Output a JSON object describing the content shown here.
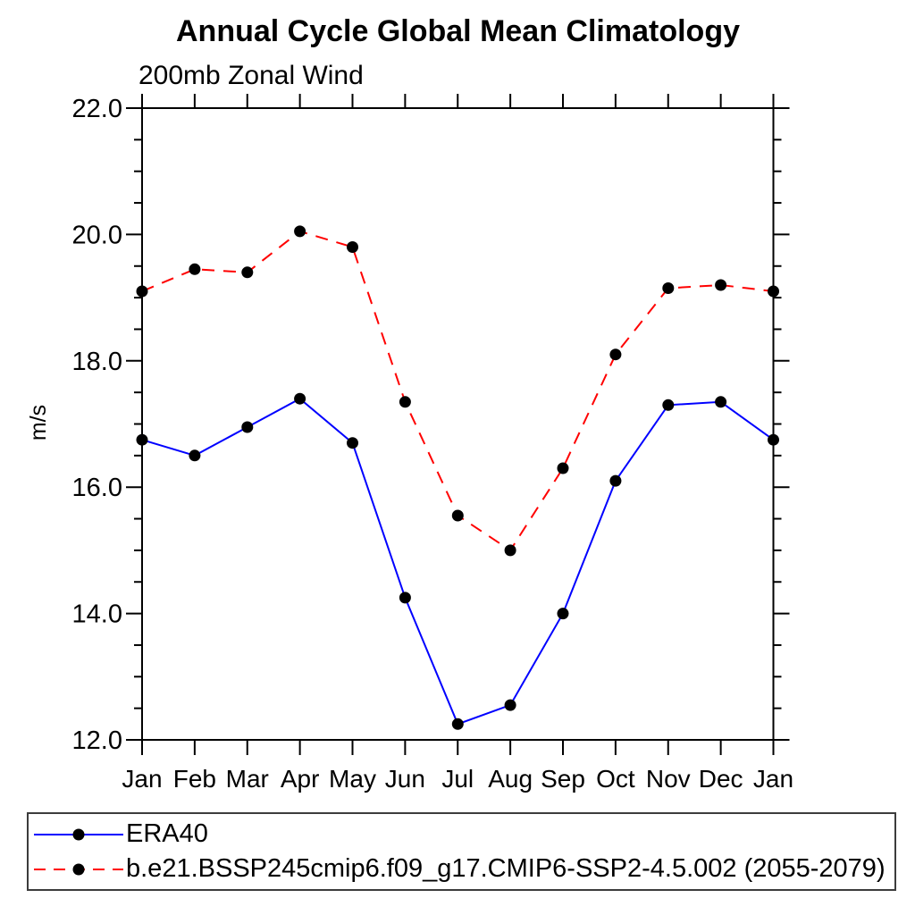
{
  "chart_data": {
    "type": "line",
    "title": "Annual Cycle Global Mean Climatology",
    "subtitle": "200mb Zonal Wind",
    "ylabel": "m/s",
    "xlabel": "",
    "categories": [
      "Jan",
      "Feb",
      "Mar",
      "Apr",
      "May",
      "Jun",
      "Jul",
      "Aug",
      "Sep",
      "Oct",
      "Nov",
      "Dec",
      "Jan"
    ],
    "series": [
      {
        "name": "ERA40",
        "color": "#0000ff",
        "line_style": "solid",
        "marker": "filled-circle",
        "values": [
          16.75,
          16.5,
          16.95,
          17.4,
          16.7,
          14.25,
          12.25,
          12.55,
          14.0,
          16.1,
          17.3,
          17.35,
          16.75
        ]
      },
      {
        "name": "b.e21.BSSP245cmip6.f09_g17.CMIP6-SSP2-4.5.002 (2055-2079)",
        "color": "#ff0000",
        "line_style": "dashed",
        "marker": "filled-circle",
        "values": [
          19.1,
          19.45,
          19.4,
          20.05,
          19.8,
          17.35,
          15.55,
          15.0,
          16.3,
          18.1,
          19.15,
          19.2,
          19.1
        ]
      }
    ],
    "ylim": [
      12.0,
      22.0
    ],
    "ytick_major_step": 2.0,
    "ytick_minor_step": 0.5,
    "ytick_labels": [
      "12.0",
      "14.0",
      "16.0",
      "18.0",
      "20.0",
      "22.0"
    ],
    "grid": false,
    "legend_position": "bottom",
    "axis_color": "#000000",
    "marker_color": "#000000"
  }
}
